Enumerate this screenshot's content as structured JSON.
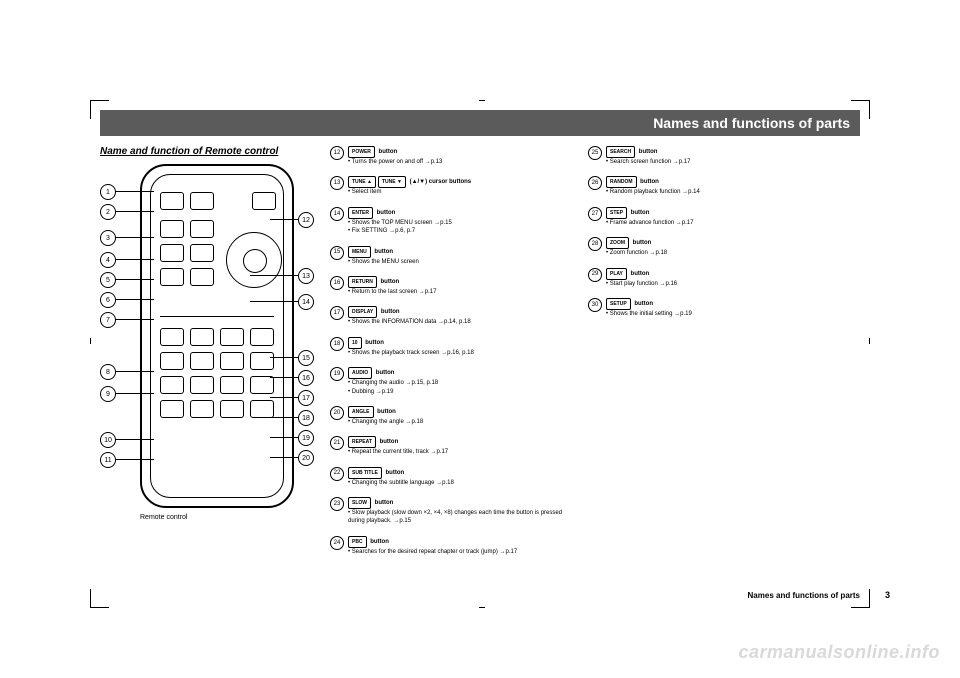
{
  "colors": {
    "bg": "#ffffff",
    "bar": "#5b5b5b",
    "text": "#000000",
    "wm": "#d9d9d9"
  },
  "titlebar": "Names and functions of parts",
  "subtitle": "Name and function of Remote control",
  "remote": {
    "caption": "Remote control",
    "left_numbers": [
      "1",
      "2",
      "3",
      "4",
      "5",
      "6",
      "7",
      "8",
      "9",
      "10",
      "11"
    ],
    "right_numbers": [
      "12",
      "13",
      "14",
      "15",
      "16",
      "17",
      "18",
      "19",
      "20"
    ]
  },
  "col1": [
    {
      "n": "12",
      "keys": [
        "POWER"
      ],
      "t": "button",
      "d": "• Turns the power on and off →p.13"
    },
    {
      "n": "13",
      "keys": [
        "TUNE ▲",
        "TUNE ▼"
      ],
      "t": "(▲/▼) cursor buttons",
      "d": "• Select item"
    },
    {
      "n": "14",
      "keys": [
        "ENTER"
      ],
      "t": "button",
      "d": "• Shows the TOP MENU screen →p.15\n• Fix SETTING →p.6, p.7"
    },
    {
      "n": "15",
      "keys": [
        "MENU"
      ],
      "t": "button",
      "d": "• Shows the MENU screen"
    },
    {
      "n": "16",
      "keys": [
        "RETURN"
      ],
      "t": "button",
      "d": "• Return to the last screen →p.17"
    },
    {
      "n": "17",
      "keys": [
        "DISPLAY"
      ],
      "t": "button",
      "d": "• Shows the INFORMATION data →p.14, p.18"
    },
    {
      "n": "18",
      "keys": [
        "10"
      ],
      "t": "button",
      "d": "• Shows the playback track screen →p.16, p.18"
    },
    {
      "n": "19",
      "keys": [
        "AUDIO"
      ],
      "t": "button",
      "d": "• Changing the audio →p.15, p.18\n• Dubbing →p.19"
    },
    {
      "n": "20",
      "keys": [
        "ANGLE"
      ],
      "t": "button",
      "d": "• Changing the angle →p.18"
    },
    {
      "n": "21",
      "keys": [
        "REPEAT"
      ],
      "t": "button",
      "d": "• Repeat the current title, track →p.17"
    },
    {
      "n": "22",
      "keys": [
        "SUB TITLE"
      ],
      "t": "button",
      "d": "• Changing the subtitle language →p.18"
    },
    {
      "n": "23",
      "keys": [
        "SLOW"
      ],
      "t": "button",
      "d": "• Slow playback (slow down ×2, ×4, ×8) changes each time the button is pressed during playback. →p.15"
    },
    {
      "n": "24",
      "keys": [
        "PBC"
      ],
      "t": "button",
      "d": "• Searches for the desired repeat chapter or track (jump) →p.17"
    }
  ],
  "col2": [
    {
      "n": "25",
      "keys": [
        "SEARCH"
      ],
      "t": "button",
      "d": "• Search screen function →p.17"
    },
    {
      "n": "26",
      "keys": [
        "RANDOM"
      ],
      "t": "button",
      "d": "• Random playback function →p.14"
    },
    {
      "n": "27",
      "keys": [
        "STEP"
      ],
      "t": "button",
      "d": "• Frame advance function →p.17"
    },
    {
      "n": "28",
      "keys": [
        "ZOOM"
      ],
      "t": "button",
      "d": "• Zoom function →p.18"
    },
    {
      "n": "29",
      "keys": [
        "PLAY"
      ],
      "t": "button",
      "d": "• Start play function →p.16"
    },
    {
      "n": "30",
      "keys": [
        "SETUP"
      ],
      "t": "button",
      "d": "• Shows the initial setting →p.19"
    }
  ],
  "footer": "Names and functions of parts",
  "pagenum": "3",
  "watermark": "carmanualsonline.info"
}
